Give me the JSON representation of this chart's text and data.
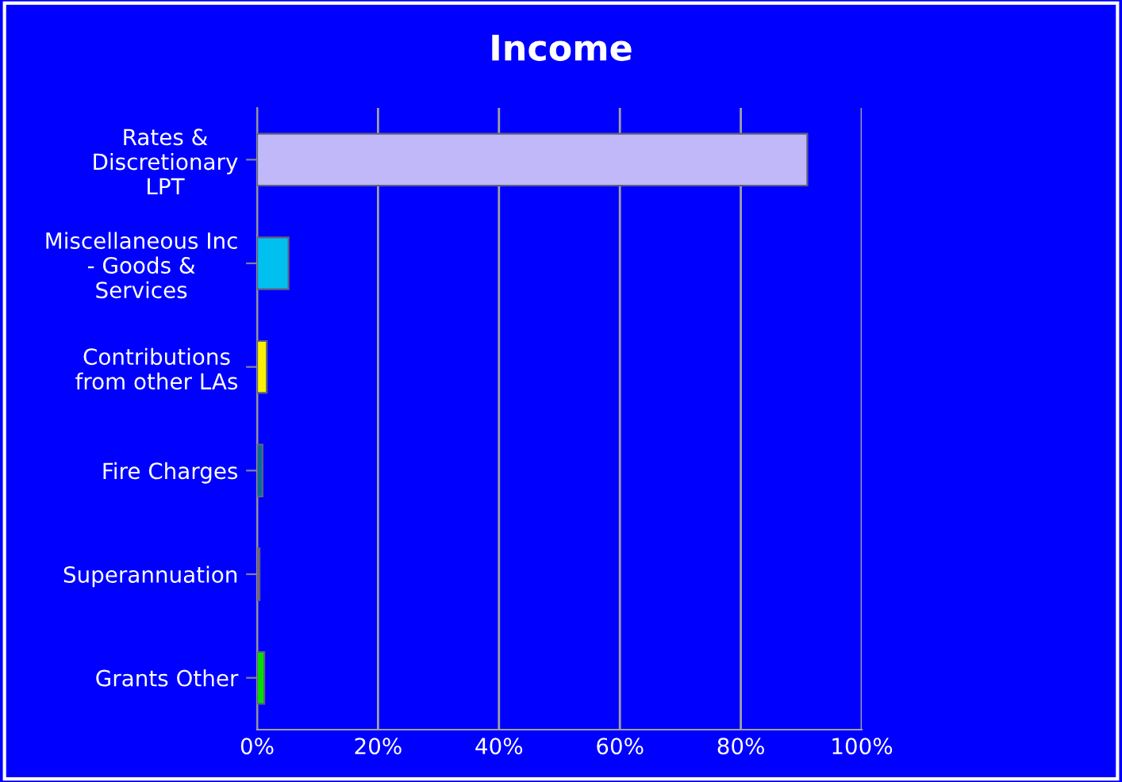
{
  "chart_data": {
    "type": "bar",
    "orientation": "horizontal",
    "title": "Income",
    "categories": [
      "Rates &\nDiscretionary\nLPT",
      "Miscellaneous Inc\n- Goods &\nServices",
      "Contributions\nfrom other LAs",
      "Fire Charges",
      "Superannuation",
      "Grants Other"
    ],
    "values": [
      91,
      5.2,
      1.6,
      0.9,
      0.4,
      1.2
    ],
    "colors": [
      "#c0b8f8",
      "#00c0f0",
      "#f8f000",
      "#006f9f",
      "#a06070",
      "#00e000"
    ],
    "xlim": [
      0,
      100
    ],
    "xticks": [
      {
        "value": 0,
        "label": "0%"
      },
      {
        "value": 20,
        "label": "20%"
      },
      {
        "value": 40,
        "label": "40%"
      },
      {
        "value": 60,
        "label": "60%"
      },
      {
        "value": 80,
        "label": "80%"
      },
      {
        "value": 100,
        "label": "100%"
      }
    ],
    "grid": "x",
    "legend": false
  }
}
